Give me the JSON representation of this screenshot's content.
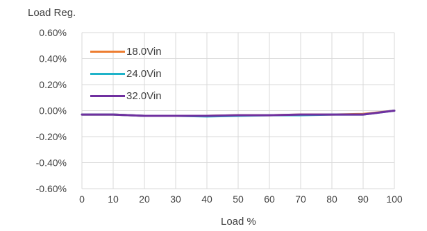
{
  "chart_data": {
    "type": "line",
    "title": "Load Reg.",
    "xlabel": "Load %",
    "ylabel": "",
    "x": [
      0,
      10,
      20,
      30,
      40,
      50,
      60,
      70,
      80,
      90,
      100
    ],
    "xlim": [
      0,
      100
    ],
    "ylim": [
      -0.6,
      0.6
    ],
    "ytick_labels": [
      "0.60%",
      "0.40%",
      "0.20%",
      "0.00%",
      "-0.20%",
      "-0.40%",
      "-0.60%"
    ],
    "xtick_labels": [
      "0",
      "10",
      "20",
      "30",
      "40",
      "50",
      "60",
      "70",
      "80",
      "90",
      "100"
    ],
    "grid": true,
    "legend_position": "top-left",
    "series": [
      {
        "name": "18.0Vin",
        "color": "#ED7D31",
        "values": [
          -0.03,
          -0.03,
          -0.04,
          -0.04,
          -0.04,
          -0.035,
          -0.035,
          -0.03,
          -0.03,
          -0.025,
          0.0
        ]
      },
      {
        "name": "24.0Vin",
        "color": "#1FB3C9",
        "values": [
          -0.03,
          -0.03,
          -0.04,
          -0.04,
          -0.045,
          -0.04,
          -0.035,
          -0.035,
          -0.03,
          -0.03,
          0.0
        ]
      },
      {
        "name": "32.0Vin",
        "color": "#7030A0",
        "values": [
          -0.03,
          -0.03,
          -0.04,
          -0.04,
          -0.04,
          -0.035,
          -0.035,
          -0.03,
          -0.03,
          -0.03,
          0.0
        ]
      }
    ]
  }
}
